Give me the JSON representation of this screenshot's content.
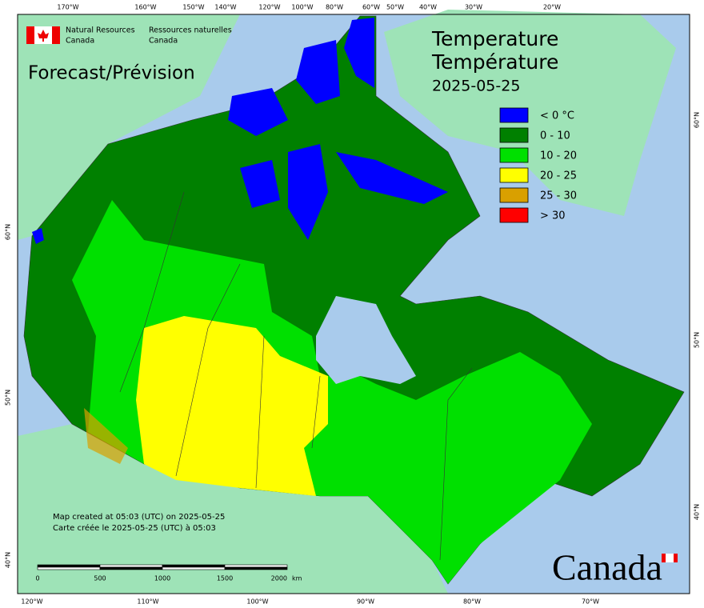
{
  "header": {
    "agency_en": [
      "Natural Resources",
      "Canada"
    ],
    "agency_fr": [
      "Ressources naturelles",
      "Canada"
    ],
    "product": "Forecast/Prévision",
    "title": [
      "Temperature",
      "Température"
    ],
    "date": "2025-05-25"
  },
  "legend": [
    {
      "label": "< 0 °C",
      "color": "#0000ff"
    },
    {
      "label": "0 - 10",
      "color": "#008000"
    },
    {
      "label": "10 - 20",
      "color": "#00e000"
    },
    {
      "label": "20 - 25",
      "color": "#ffff00"
    },
    {
      "label": "25 - 30",
      "color": "#d9a000"
    },
    {
      "label": "> 30",
      "color": "#ff0000"
    }
  ],
  "graticule": {
    "top": [
      "170°W",
      "160°W",
      "150°W",
      "140°W",
      "120°W",
      "100°W",
      "80°W",
      "60°W",
      "50°W",
      "40°W",
      "30°W",
      "20°W"
    ],
    "bottom": [
      "120°W",
      "110°W",
      "100°W",
      "90°W",
      "80°W",
      "70°W"
    ],
    "left": [
      "60°N",
      "50°N",
      "40°N"
    ],
    "right": [
      "60°N",
      "50°N",
      "40°N"
    ]
  },
  "scale_bar": {
    "ticks": [
      0,
      500,
      1000,
      1500,
      2000
    ],
    "unit": "km"
  },
  "credits": [
    "Map created at 05:03 (UTC) on 2025-05-25",
    "Carte créée le 2025-05-25 (UTC) à 05:03"
  ],
  "wordmark": "Canada"
}
